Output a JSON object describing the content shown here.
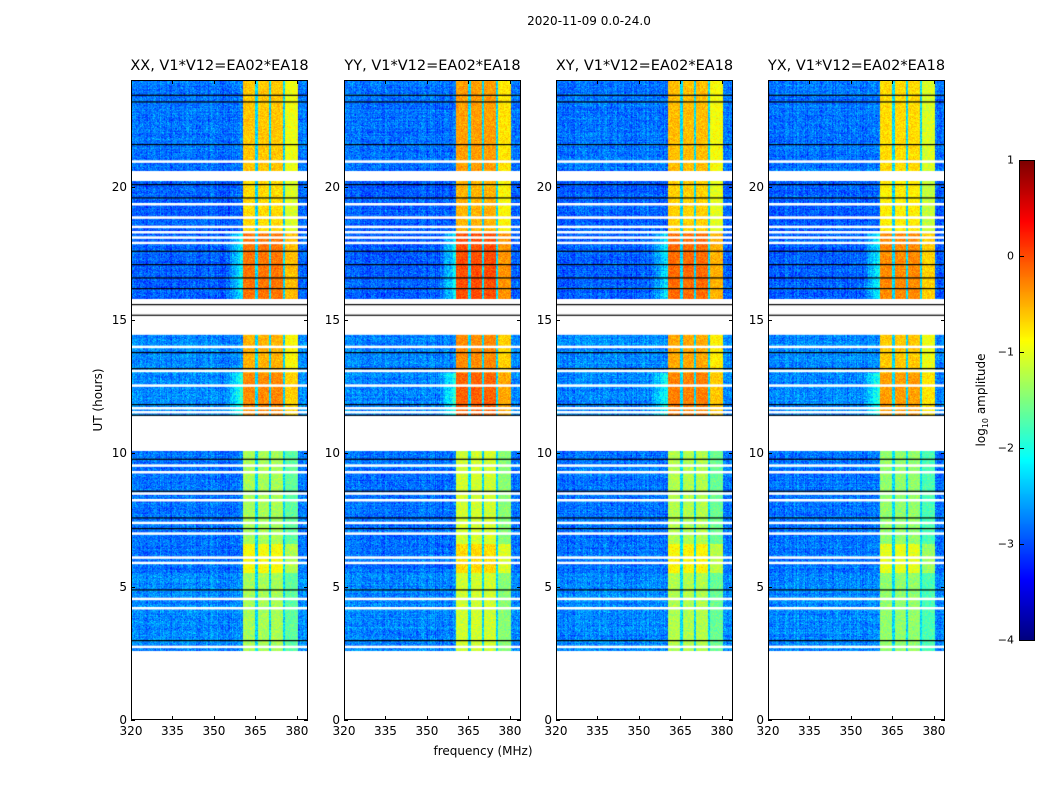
{
  "chart_data": {
    "type": "heatmap",
    "title": "2020-11-09 0.0-24.0",
    "xlabel": "frequency (MHz)",
    "ylabel": "UT (hours)",
    "xlim": [
      320,
      384
    ],
    "ylim": [
      0,
      24
    ],
    "xticks": [
      320,
      335,
      350,
      365,
      380
    ],
    "yticks": [
      0,
      5,
      10,
      15,
      20
    ],
    "colorbar": {
      "label_main": "log",
      "label_sub": "10",
      "label_rest": " amplitude",
      "range": [
        -4,
        1
      ],
      "ticks": [
        1,
        0,
        -1,
        -2,
        -3,
        -4
      ],
      "tick_labels": [
        "1",
        "0",
        "−1",
        "−2",
        "−3",
        "−4"
      ],
      "colormap": "jet"
    },
    "panels": [
      {
        "title": "XX, V1*V12=EA02*EA18",
        "band_offset": 0.0
      },
      {
        "title": "YY, V1*V12=EA02*EA18",
        "band_offset": 0.2
      },
      {
        "title": "XY, V1*V12=EA02*EA18",
        "band_offset": 0.05
      },
      {
        "title": "YX, V1*V12=EA02*EA18",
        "band_offset": -0.1
      }
    ],
    "bright_band_mhz": [
      360.5,
      380.5
    ],
    "band_separators_mhz": [
      365.3,
      370.3,
      375.3
    ],
    "time_segments": [
      {
        "hours": [
          2.6,
          5.5
        ],
        "background": -2.7,
        "band": -1.3
      },
      {
        "hours": [
          5.5,
          6.6
        ],
        "background": -2.8,
        "band": -0.9
      },
      {
        "hours": [
          6.6,
          10.1
        ],
        "background": -2.8,
        "band": -1.3
      },
      {
        "hours": [
          11.4,
          13.0
        ],
        "background": -2.7,
        "band": -0.3
      },
      {
        "hours": [
          13.0,
          14.5
        ],
        "background": -2.7,
        "band": -0.5
      },
      {
        "hours": [
          15.8,
          18.3
        ],
        "background": -2.9,
        "band": -0.2
      },
      {
        "hours": [
          18.3,
          20.2
        ],
        "background": -2.9,
        "band": -0.7
      },
      {
        "hours": [
          20.6,
          24.0
        ],
        "background": -2.8,
        "band": -0.6
      }
    ],
    "flagged_white_hours": [
      2.75,
      4.2,
      4.55,
      5.9,
      6.1,
      7.0,
      7.4,
      8.25,
      8.5,
      9.3,
      9.55,
      11.7,
      11.55,
      12.55,
      13.1,
      14.0,
      14.5,
      15.1,
      15.3,
      15.5,
      15.7,
      17.9,
      18.1,
      18.3,
      18.5,
      18.85,
      19.35,
      20.95
    ],
    "flagged_black_hours": [
      3.0,
      4.9,
      7.2,
      7.6,
      8.6,
      9.8,
      11.45,
      11.85,
      13.2,
      13.8,
      15.2,
      15.6,
      16.2,
      16.6,
      17.1,
      17.6,
      19.6,
      20.1,
      21.6,
      23.2,
      23.45
    ]
  }
}
